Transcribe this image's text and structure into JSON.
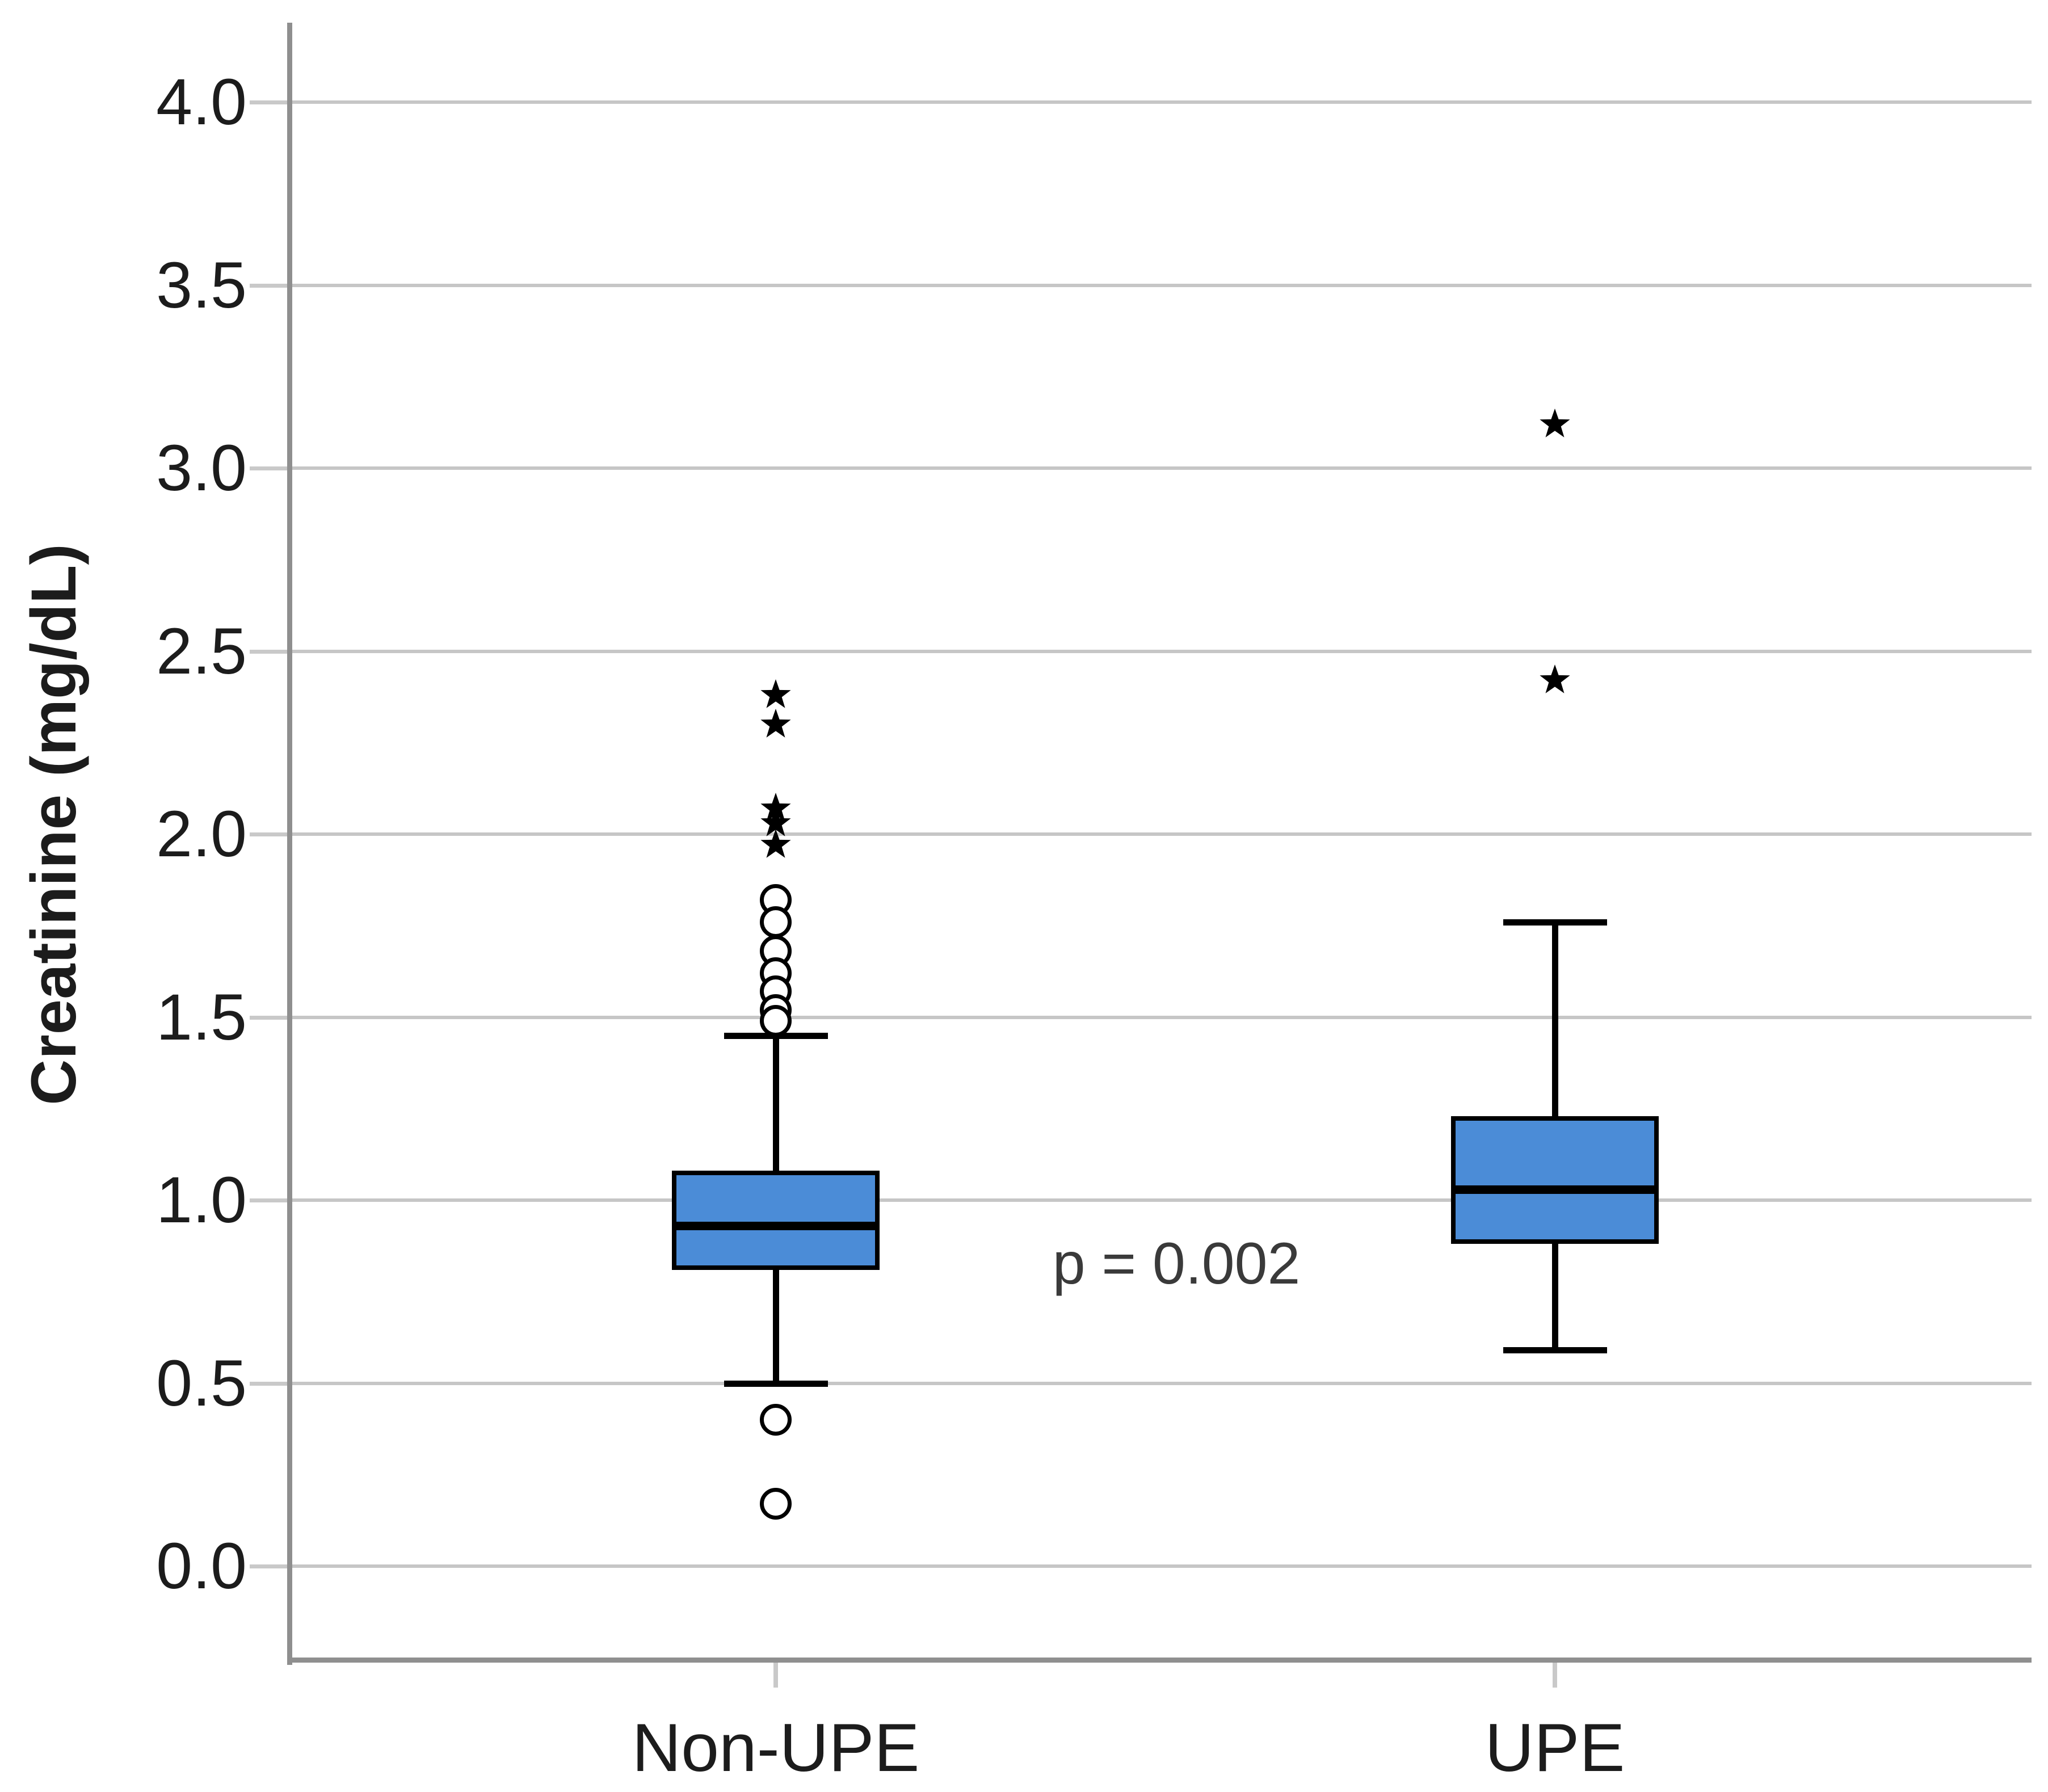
{
  "chart_data": {
    "type": "boxplot",
    "title": "",
    "ylabel": "Creatinine (mg/dL)",
    "xlabel": "",
    "annotation": "p = 0.002",
    "grid": true,
    "legend": false,
    "ylim": [
      -0.25,
      4.25
    ],
    "y_axis": {
      "ticks": [
        {
          "value": 0.0,
          "label": "0.0"
        },
        {
          "value": 0.5,
          "label": "0.5"
        },
        {
          "value": 1.0,
          "label": "1.0"
        },
        {
          "value": 1.5,
          "label": "1.5"
        },
        {
          "value": 2.0,
          "label": "2.0"
        },
        {
          "value": 2.5,
          "label": "2.5"
        },
        {
          "value": 3.0,
          "label": "3.0"
        },
        {
          "value": 3.5,
          "label": "3.5"
        },
        {
          "value": 4.0,
          "label": "4.0"
        }
      ]
    },
    "groups": [
      {
        "label": "Non-UPE",
        "whisker_low": 0.5,
        "q1": 0.81,
        "median": 0.93,
        "q3": 1.08,
        "whisker_high": 1.45,
        "outliers": [
          1.82,
          1.76,
          1.68,
          1.62,
          1.57,
          1.52,
          1.49,
          0.4,
          0.17
        ],
        "extremes": [
          2.38,
          2.3,
          2.07,
          2.03,
          1.97
        ]
      },
      {
        "label": "UPE",
        "whisker_low": 0.59,
        "q1": 0.88,
        "median": 1.03,
        "q3": 1.23,
        "whisker_high": 1.76,
        "outliers": [],
        "extremes": [
          3.12,
          2.42
        ]
      }
    ],
    "colors": {
      "box_fill": "#4B8CD7",
      "box_line": "#000000",
      "grid_line": "#C6C6C6",
      "axis_line": "#8F8F8F",
      "tick_mark": "#C9C9C9",
      "text": "#1C1C1C",
      "annotation_text": "#3A3A3A"
    }
  }
}
